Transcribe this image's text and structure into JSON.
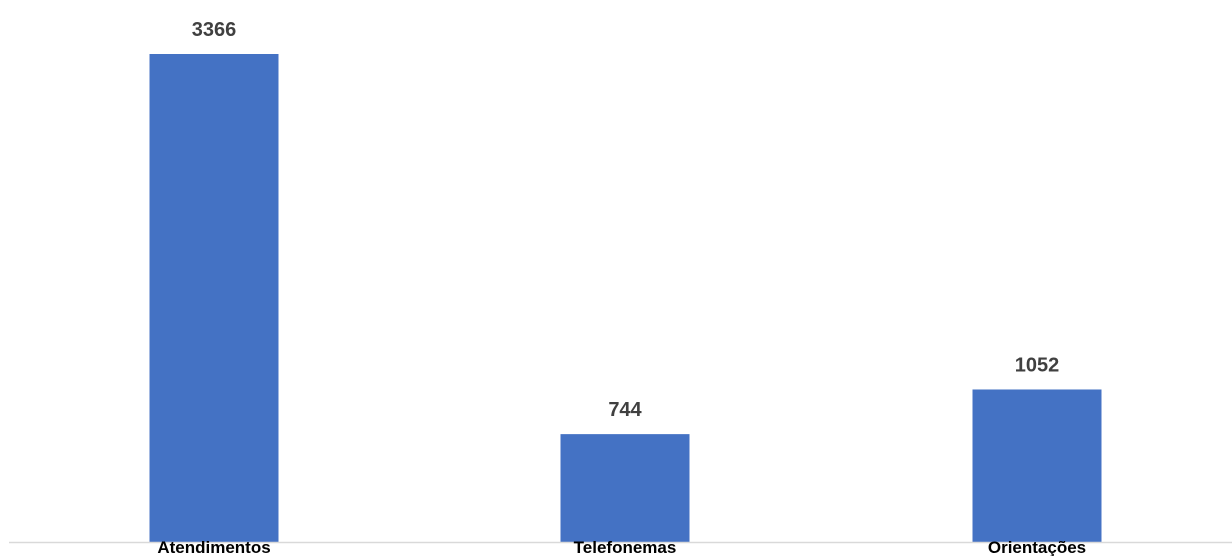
{
  "chart_data": {
    "type": "bar",
    "categories": [
      "Atendimentos",
      "Telefonemas",
      "Orientações"
    ],
    "values": [
      3366,
      744,
      1052
    ],
    "title": "",
    "xlabel": "",
    "ylabel": "",
    "ylim": [
      0,
      3366
    ],
    "grid": false,
    "legend": "none",
    "data_labels": true,
    "bar_color": "#4472C4",
    "axis_color": "#D9D9D9"
  }
}
